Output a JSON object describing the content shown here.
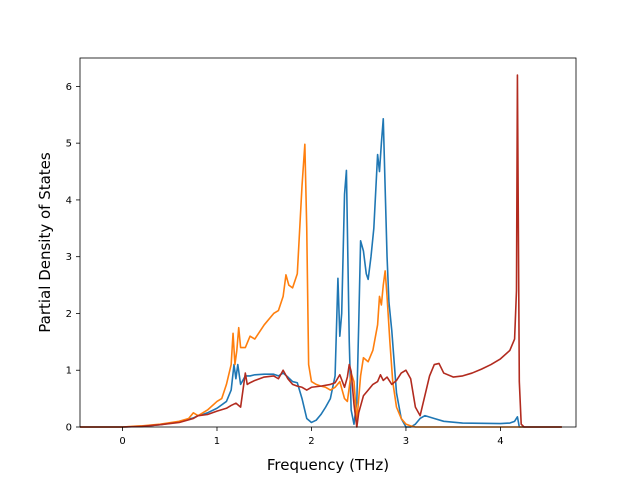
{
  "chart_data": {
    "type": "line",
    "title": "",
    "xlabel": "Frequency (THz)",
    "ylabel": "Partial Density of States",
    "xlim": [
      -0.45,
      4.8
    ],
    "ylim": [
      0,
      6.5
    ],
    "xticks": [
      0,
      1,
      2,
      3,
      4
    ],
    "yticks": [
      0,
      1,
      2,
      3,
      4,
      5,
      6
    ],
    "grid": false,
    "legend": "none",
    "series": [
      {
        "color": "#1f77b4",
        "x": [
          -0.45,
          0.0,
          0.2,
          0.4,
          0.6,
          0.75,
          0.8,
          0.85,
          0.9,
          1.0,
          1.1,
          1.15,
          1.18,
          1.2,
          1.22,
          1.25,
          1.3,
          1.35,
          1.4,
          1.5,
          1.6,
          1.65,
          1.7,
          1.75,
          1.8,
          1.85,
          1.9,
          1.95,
          2.0,
          2.05,
          2.1,
          2.15,
          2.2,
          2.25,
          2.28,
          2.3,
          2.32,
          2.35,
          2.37,
          2.4,
          2.42,
          2.45,
          2.48,
          2.5,
          2.52,
          2.55,
          2.58,
          2.6,
          2.63,
          2.66,
          2.7,
          2.72,
          2.74,
          2.76,
          2.78,
          2.8,
          2.82,
          2.85,
          2.9,
          2.95,
          3.0,
          3.05,
          3.1,
          3.15,
          3.2,
          3.3,
          3.4,
          3.6,
          4.0,
          4.1,
          4.15,
          4.18,
          4.2,
          4.3,
          4.5,
          4.65
        ],
        "y": [
          0,
          0,
          0.01,
          0.04,
          0.09,
          0.16,
          0.2,
          0.22,
          0.25,
          0.33,
          0.45,
          0.65,
          1.1,
          0.85,
          1.1,
          0.75,
          0.9,
          0.9,
          0.92,
          0.93,
          0.93,
          0.9,
          0.95,
          0.88,
          0.8,
          0.78,
          0.5,
          0.15,
          0.08,
          0.12,
          0.22,
          0.35,
          0.5,
          0.9,
          2.62,
          1.6,
          2.0,
          4.1,
          4.52,
          1.5,
          0.3,
          0.05,
          0.45,
          1.8,
          3.28,
          3.1,
          2.7,
          2.6,
          3.0,
          3.5,
          4.8,
          4.5,
          5.0,
          5.43,
          4.2,
          3.0,
          2.2,
          1.7,
          0.6,
          0.15,
          0.0,
          0.0,
          0.05,
          0.15,
          0.2,
          0.15,
          0.1,
          0.07,
          0.06,
          0.07,
          0.1,
          0.18,
          0.0,
          0.0,
          0.0,
          0.0
        ]
      },
      {
        "color": "#ff7f0e",
        "x": [
          -0.45,
          0.0,
          0.2,
          0.4,
          0.6,
          0.7,
          0.75,
          0.8,
          0.9,
          1.0,
          1.05,
          1.1,
          1.15,
          1.17,
          1.19,
          1.21,
          1.23,
          1.25,
          1.3,
          1.35,
          1.4,
          1.5,
          1.6,
          1.65,
          1.7,
          1.73,
          1.76,
          1.8,
          1.85,
          1.9,
          1.93,
          1.95,
          1.97,
          2.0,
          2.05,
          2.1,
          2.15,
          2.2,
          2.25,
          2.3,
          2.35,
          2.38,
          2.4,
          2.42,
          2.45,
          2.48,
          2.5,
          2.52,
          2.55,
          2.6,
          2.65,
          2.7,
          2.72,
          2.74,
          2.76,
          2.78,
          2.8,
          2.83,
          2.86,
          2.9,
          2.95,
          3.0,
          3.05,
          3.1,
          3.2,
          3.4,
          4.65
        ],
        "y": [
          0,
          0,
          0.02,
          0.05,
          0.1,
          0.15,
          0.25,
          0.2,
          0.3,
          0.45,
          0.5,
          0.75,
          1.1,
          1.65,
          1.1,
          1.35,
          1.75,
          1.4,
          1.4,
          1.6,
          1.55,
          1.8,
          2.0,
          2.05,
          2.3,
          2.68,
          2.5,
          2.45,
          2.7,
          4.25,
          4.98,
          3.5,
          1.1,
          0.8,
          0.75,
          0.72,
          0.7,
          0.65,
          0.7,
          0.8,
          0.5,
          0.45,
          0.7,
          0.95,
          0.8,
          0.1,
          0.5,
          0.9,
          1.22,
          1.15,
          1.35,
          1.8,
          2.3,
          2.15,
          2.5,
          2.75,
          2.3,
          1.5,
          0.8,
          0.35,
          0.15,
          0.05,
          0.02,
          0.0,
          0.0,
          0.0,
          0.0
        ]
      },
      {
        "color": "#b22b1f",
        "x": [
          -0.45,
          0.0,
          0.2,
          0.4,
          0.6,
          0.75,
          0.8,
          0.9,
          1.0,
          1.1,
          1.15,
          1.2,
          1.25,
          1.3,
          1.32,
          1.35,
          1.4,
          1.5,
          1.6,
          1.65,
          1.7,
          1.75,
          1.8,
          1.85,
          1.9,
          1.95,
          2.0,
          2.1,
          2.2,
          2.25,
          2.3,
          2.35,
          2.38,
          2.4,
          2.42,
          2.45,
          2.48,
          2.5,
          2.55,
          2.6,
          2.65,
          2.7,
          2.73,
          2.76,
          2.8,
          2.85,
          2.9,
          2.95,
          3.0,
          3.05,
          3.1,
          3.15,
          3.2,
          3.25,
          3.3,
          3.35,
          3.4,
          3.5,
          3.6,
          3.7,
          3.8,
          3.9,
          4.0,
          4.1,
          4.15,
          4.17,
          4.18,
          4.2,
          4.22,
          4.25,
          4.3,
          4.5,
          4.65
        ],
        "y": [
          0,
          0,
          0.01,
          0.04,
          0.08,
          0.15,
          0.2,
          0.22,
          0.28,
          0.33,
          0.38,
          0.42,
          0.35,
          0.95,
          0.75,
          0.78,
          0.82,
          0.88,
          0.9,
          0.85,
          1.0,
          0.85,
          0.75,
          0.72,
          0.7,
          0.65,
          0.7,
          0.72,
          0.75,
          0.78,
          0.92,
          0.7,
          0.88,
          1.1,
          0.98,
          0.4,
          0.0,
          0.25,
          0.55,
          0.65,
          0.75,
          0.8,
          0.92,
          0.82,
          0.88,
          0.75,
          0.82,
          0.95,
          1.0,
          0.85,
          0.35,
          0.2,
          0.55,
          0.9,
          1.1,
          1.12,
          0.95,
          0.88,
          0.9,
          0.95,
          1.02,
          1.1,
          1.2,
          1.35,
          1.55,
          2.4,
          6.2,
          0.8,
          0.05,
          0.0,
          0.0,
          0.0,
          0.0
        ]
      }
    ]
  }
}
